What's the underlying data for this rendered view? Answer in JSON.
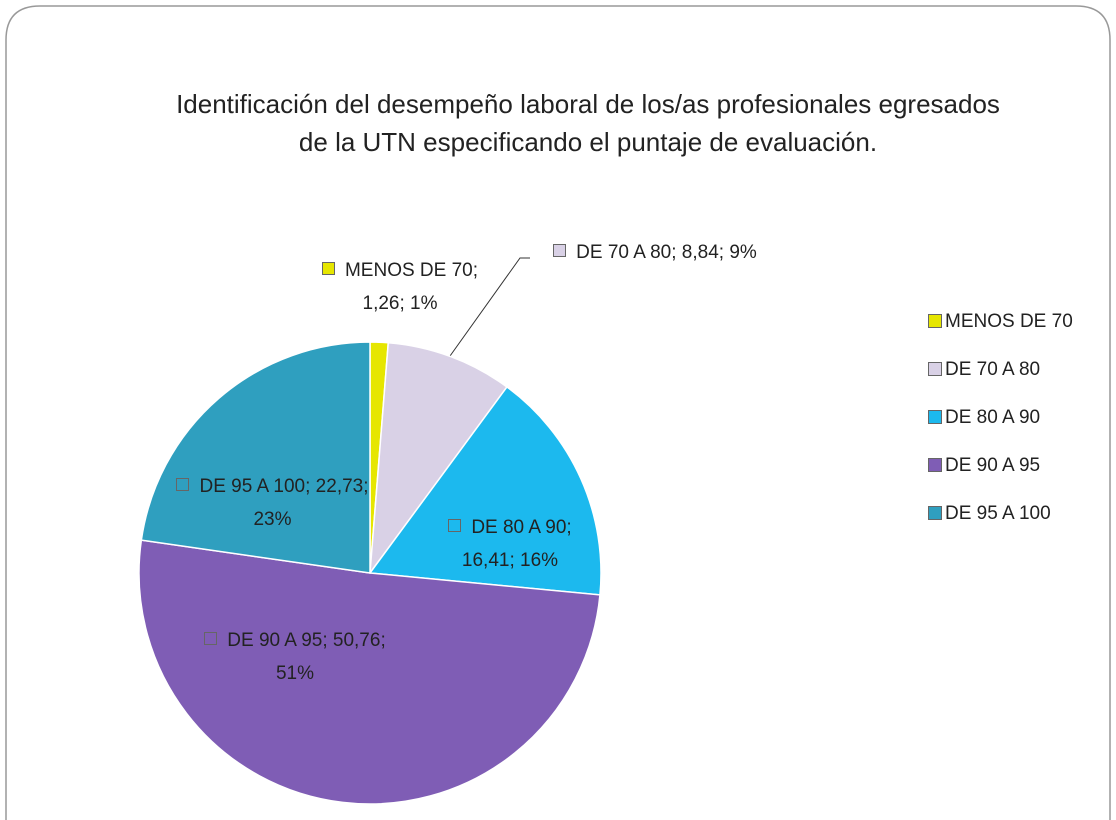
{
  "chart_data": {
    "type": "pie",
    "title": "Identificación del desempeño laboral de los/as profesionales egresados de la UTN especificando el puntaje de evaluación.",
    "categories": [
      "MENOS DE 70",
      "DE 70 A 80",
      "DE 80 A 90",
      "DE 90 A 95",
      "DE 95 A 100"
    ],
    "values": [
      1.26,
      8.84,
      16.41,
      50.76,
      22.73
    ],
    "value_labels": [
      "MENOS DE 70; 1,26; 1%",
      "DE 70 A 80; 8,84; 9%",
      "DE 80 A 90; 16,41; 16%",
      "DE 90 A 95; 50,76; 51%",
      "DE 95 A 100; 22,73; 23%"
    ],
    "colors": [
      "#e6e600",
      "#d9d1e6",
      "#1cb9ee",
      "#7f5db5",
      "#2f9fbf"
    ],
    "legend": "right"
  }
}
